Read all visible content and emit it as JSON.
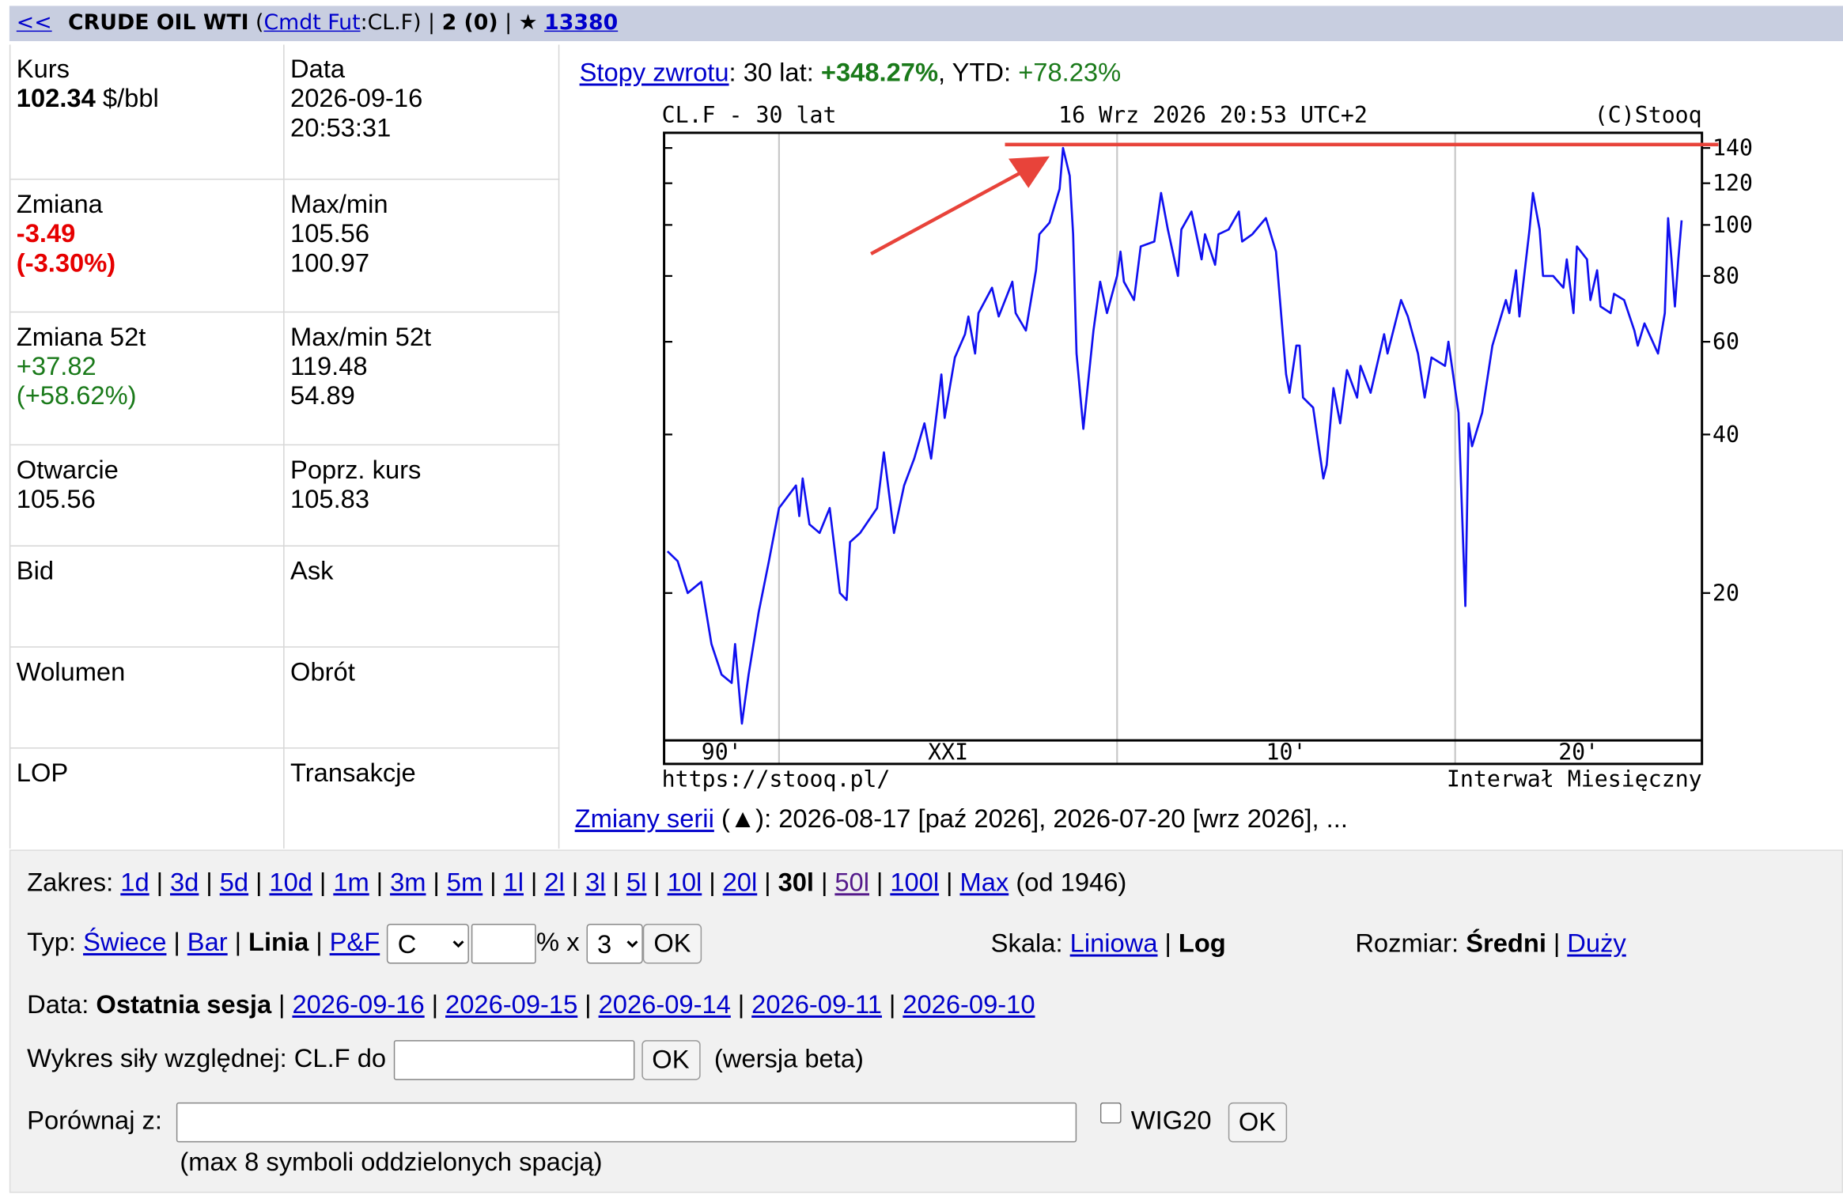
{
  "header": {
    "back": "<<",
    "name": "CRUDE OIL WTI",
    "open": "(",
    "type_link": "Cmdt Fut",
    "symbol": ":CL.F)",
    "sep1": "|",
    "counts": "2 (0)",
    "sep2": "| ★",
    "watchers": "13380"
  },
  "quote": {
    "price_label": "Kurs",
    "price": "102.34",
    "unit": "$/bbl",
    "date_label": "Data",
    "date": "2026-09-16",
    "time": "20:53:31",
    "change_label": "Zmiana",
    "change": "-3.49",
    "change_pct": "(-3.30%)",
    "range_label": "Max/min",
    "max": "105.56",
    "min": "100.97",
    "change52_label": "Zmiana 52t",
    "change52": "+37.82",
    "change52_pct": "(+58.62%)",
    "range52_label": "Max/min 52t",
    "max52": "119.48",
    "min52": "54.89",
    "open_label": "Otwarcie",
    "open": "105.56",
    "prev_label": "Poprz. kurs",
    "prev": "105.83",
    "bid_label": "Bid",
    "ask_label": "Ask",
    "volume_label": "Wolumen",
    "turnover_label": "Obrót",
    "lop_label": "LOP",
    "trades_label": "Transakcje"
  },
  "returns": {
    "link": "Stopy zwrotu",
    "label30": ": 30 lat:",
    "ret30": "+348.27%",
    "ytd_label": ", YTD:",
    "ytd": "+78.23%"
  },
  "chart_data": {
    "type": "line",
    "title": "CL.F - 30 lat",
    "subtitle": "16 Wrz 2026 20:53 UTC+2",
    "credit": "(C)Stooq",
    "source": "https://stooq.pl/",
    "interval": "Interwał Miesięczny",
    "log_scale": true,
    "grid": true,
    "xlim": [
      1996.6,
      2027.3
    ],
    "xticks": [
      {
        "value": 1990,
        "label": "90'"
      },
      {
        "value": 2000,
        "label": "XXI"
      },
      {
        "value": 2010,
        "label": "10'"
      },
      {
        "value": 2020,
        "label": "20'"
      }
    ],
    "ylim": [
      10.5,
      149.6
    ],
    "yticks": [
      20,
      40,
      60,
      80,
      100,
      120,
      140
    ],
    "x": [
      1996.7,
      1997.0,
      1997.3,
      1997.7,
      1998.0,
      1998.3,
      1998.6,
      1998.7,
      1998.9,
      1999.1,
      1999.4,
      1999.7,
      2000.0,
      2000.5,
      2000.6,
      2000.7,
      2000.9,
      2001.2,
      2001.5,
      2001.8,
      2002.0,
      2002.1,
      2002.4,
      2002.9,
      2003.1,
      2003.4,
      2003.7,
      2004.0,
      2004.3,
      2004.5,
      2004.8,
      2004.9,
      2005.2,
      2005.5,
      2005.6,
      2005.8,
      2005.9,
      2006.3,
      2006.5,
      2006.9,
      2007.0,
      2007.3,
      2007.6,
      2007.7,
      2008.0,
      2008.3,
      2008.4,
      2008.6,
      2008.7,
      2008.8,
      2009.0,
      2009.3,
      2009.5,
      2009.7,
      2010.0,
      2010.1,
      2010.2,
      2010.5,
      2010.7,
      2011.1,
      2011.3,
      2011.5,
      2011.8,
      2011.9,
      2012.2,
      2012.5,
      2012.6,
      2012.9,
      2013.0,
      2013.3,
      2013.6,
      2013.7,
      2014.0,
      2014.4,
      2014.7,
      2015.0,
      2015.1,
      2015.3,
      2015.4,
      2015.5,
      2015.8,
      2016.1,
      2016.2,
      2016.4,
      2016.6,
      2016.8,
      2017.1,
      2017.2,
      2017.5,
      2017.9,
      2018.0,
      2018.4,
      2018.6,
      2018.9,
      2019.1,
      2019.3,
      2019.7,
      2019.8,
      2020.1,
      2020.3,
      2020.4,
      2020.5,
      2020.8,
      2021.1,
      2021.5,
      2021.6,
      2021.8,
      2021.9,
      2022.2,
      2022.3,
      2022.5,
      2022.6,
      2022.9,
      2023.2,
      2023.3,
      2023.5,
      2023.6,
      2023.9,
      2024.0,
      2024.2,
      2024.3,
      2024.6,
      2024.7,
      2025.0,
      2025.3,
      2025.4,
      2025.6,
      2026.0,
      2026.2,
      2026.3,
      2026.4,
      2026.5,
      2026.6,
      2026.7
    ],
    "series": [
      {
        "color": "#1010f0",
        "values": [
          24,
          23,
          20,
          21,
          16,
          14,
          13.5,
          16,
          11.3,
          14,
          18.4,
          23,
          29,
          32,
          28,
          33,
          27,
          26,
          29,
          20,
          19.4,
          25,
          26,
          29,
          37,
          26,
          32,
          36,
          42,
          36,
          52,
          43,
          56,
          62,
          67,
          57,
          68,
          76,
          67,
          78,
          68,
          63,
          82,
          96,
          101,
          117,
          140,
          124,
          96,
          57,
          41,
          63,
          78,
          68,
          80,
          89,
          78,
          72,
          91,
          93,
          115,
          98,
          80,
          98,
          106,
          86,
          96,
          84,
          96,
          98,
          106,
          93,
          96,
          103,
          89,
          52,
          48,
          59,
          59,
          47,
          45,
          33,
          35,
          49,
          42,
          53,
          47,
          54,
          48,
          62,
          57,
          72,
          67,
          57,
          47,
          56,
          54,
          60,
          44,
          18.9,
          42,
          38,
          44,
          59,
          72,
          68,
          82,
          67,
          98,
          115,
          98,
          80,
          80,
          76,
          86,
          68,
          91,
          86,
          72,
          82,
          70,
          68,
          74,
          72,
          63,
          59,
          65,
          57,
          68,
          103,
          86,
          70,
          86,
          102
        ]
      }
    ]
  },
  "series_changes": {
    "link": "Zmiany serii",
    "text": "(▲): 2026-08-17 [paź 2026], 2026-07-20 [wrz 2026], ..."
  },
  "controls": {
    "separator": "|",
    "range": {
      "label": "Zakres:",
      "items": [
        "1d",
        "3d",
        "5d",
        "10d",
        "1m",
        "3m",
        "5m",
        "1l",
        "2l",
        "3l",
        "5l",
        "10l",
        "20l",
        "30l",
        "50l",
        "100l",
        "Max"
      ],
      "active": 13,
      "visited": 14,
      "suffix": "(od 1946)"
    },
    "type": {
      "label": "Typ:",
      "items": [
        "Świece",
        "Bar",
        "Linia",
        "P&F"
      ],
      "active": 2,
      "select": "C",
      "pct": "% x",
      "mult": "3",
      "ok": "OK"
    },
    "scale": {
      "label": "Skala:",
      "items": [
        "Liniowa",
        "Log"
      ],
      "active": 1
    },
    "size": {
      "label": "Rozmiar:",
      "items": [
        "Średni",
        "Duży"
      ],
      "active": 0
    },
    "date": {
      "label": "Data:",
      "items": [
        "Ostatnia sesja",
        "2026-09-16",
        "2026-09-15",
        "2026-09-14",
        "2026-09-11",
        "2026-09-10"
      ],
      "active": 0
    },
    "relative": {
      "label": "Wykres siły względnej: CL.F do",
      "ok": "OK",
      "note": "(wersja beta)"
    },
    "compare": {
      "label": "Porównaj z:",
      "checkbox": "WIG20",
      "ok": "OK",
      "note": "(max 8 symboli oddzielonych spacją)"
    }
  }
}
